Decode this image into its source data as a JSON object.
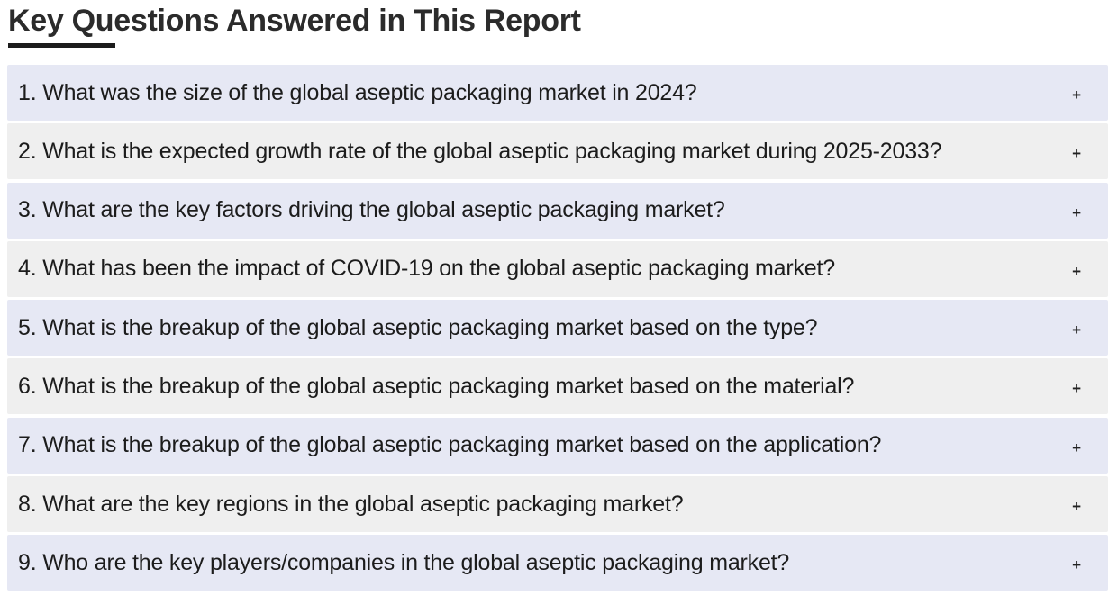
{
  "heading": "Key Questions Answered in This Report",
  "toggle_symbol": "+",
  "questions": [
    "1. What was the size of the global aseptic packaging market in 2024?",
    "2. What is the expected growth rate of the global aseptic packaging market during 2025-2033?",
    "3. What are the key factors driving the global aseptic packaging market?",
    "4. What has been the impact of COVID-19 on the global aseptic packaging market?",
    "5. What is the breakup of the global aseptic packaging market based on the type?",
    "6. What is the breakup of the global aseptic packaging market based on the material?",
    "7. What is the breakup of the global aseptic packaging market based on the application?",
    "8. What are the key regions in the global aseptic packaging market?",
    "9. Who are the key players/companies in the global aseptic packaging market?"
  ],
  "colors": {
    "row_odd": "#e6e8f4",
    "row_even": "#efefef",
    "heading": "#2b2b2b",
    "underline": "#1c1c1c"
  }
}
